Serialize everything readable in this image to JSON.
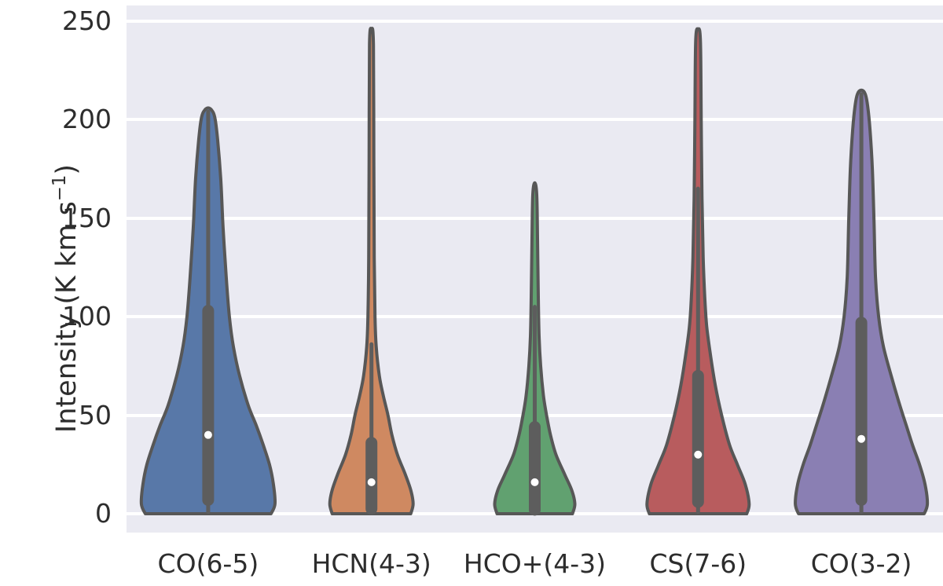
{
  "figure": {
    "page_bg": "#ffffff",
    "plot_bg": "#eaeaf2",
    "grid_color": "#ffffff",
    "text_color": "#2d2d2d",
    "violin_outline_color": "#575757",
    "inner_box_color": "#5d5d5d",
    "median_dot_color": "#ffffff"
  },
  "y_axis": {
    "label_prefix": "Intensity (K km s",
    "label_sup": "−1",
    "label_suffix": ")",
    "tick_labels": [
      "0",
      "50",
      "100",
      "150",
      "200",
      "250"
    ]
  },
  "chart_data": {
    "type": "violin",
    "title": "",
    "xlabel": "",
    "ylabel": "Intensity (K km s^-1)",
    "ylim": [
      -9.5,
      258
    ],
    "yticks": [
      0,
      50,
      100,
      150,
      200,
      250
    ],
    "grid": true,
    "categories": [
      "CO(6-5)",
      "HCN(4-3)",
      "HCO+(4-3)",
      "CS(7-6)",
      "CO(3-2)"
    ],
    "series": [
      {
        "label": "CO(6-5)",
        "color": "#5878A8",
        "min": 0,
        "max": 205,
        "q1": 7,
        "median": 40,
        "q3": 103,
        "whisker_low": 1,
        "whisker_high": 204,
        "profile": [
          [
            0,
            80
          ],
          [
            5,
            85
          ],
          [
            15,
            83
          ],
          [
            25,
            78
          ],
          [
            35,
            70
          ],
          [
            45,
            61
          ],
          [
            55,
            51
          ],
          [
            70,
            40
          ],
          [
            85,
            32
          ],
          [
            100,
            27
          ],
          [
            120,
            23
          ],
          [
            145,
            19
          ],
          [
            170,
            16
          ],
          [
            190,
            12
          ],
          [
            200,
            9
          ],
          [
            204,
            6
          ],
          [
            206,
            0
          ]
        ]
      },
      {
        "label": "HCN(4-3)",
        "color": "#CF8961",
        "min": 0,
        "max": 246,
        "q1": 2.5,
        "median": 16,
        "q3": 36,
        "whisker_low": 1,
        "whisker_high": 86,
        "profile": [
          [
            0,
            50
          ],
          [
            5,
            53
          ],
          [
            12,
            50
          ],
          [
            20,
            43
          ],
          [
            30,
            33
          ],
          [
            40,
            26
          ],
          [
            50,
            21
          ],
          [
            60,
            15
          ],
          [
            70,
            10
          ],
          [
            85,
            6
          ],
          [
            100,
            4.5
          ],
          [
            130,
            3.5
          ],
          [
            180,
            3
          ],
          [
            238,
            2.5
          ],
          [
            246,
            0
          ]
        ]
      },
      {
        "label": "HCO+(4-3)",
        "color": "#61A170",
        "min": 0,
        "max": 168,
        "q1": 2,
        "median": 16,
        "q3": 44,
        "whisker_low": 1,
        "whisker_high": 105,
        "profile": [
          [
            0,
            48
          ],
          [
            5,
            51
          ],
          [
            12,
            47
          ],
          [
            20,
            38
          ],
          [
            30,
            27
          ],
          [
            40,
            20
          ],
          [
            50,
            15
          ],
          [
            60,
            11
          ],
          [
            75,
            7.5
          ],
          [
            90,
            5.5
          ],
          [
            110,
            4.5
          ],
          [
            140,
            3.5
          ],
          [
            162,
            2.5
          ],
          [
            168,
            0
          ]
        ]
      },
      {
        "label": "CS(7-6)",
        "color": "#B85C5E",
        "min": 0,
        "max": 246,
        "q1": 6,
        "median": 30,
        "q3": 70,
        "whisker_low": 1,
        "whisker_high": 165,
        "profile": [
          [
            0,
            62
          ],
          [
            5,
            65
          ],
          [
            15,
            60
          ],
          [
            25,
            50
          ],
          [
            35,
            40
          ],
          [
            50,
            30
          ],
          [
            65,
            22
          ],
          [
            80,
            16
          ],
          [
            95,
            11
          ],
          [
            110,
            8.5
          ],
          [
            130,
            6.5
          ],
          [
            160,
            5
          ],
          [
            200,
            4
          ],
          [
            240,
            3
          ],
          [
            246,
            0
          ]
        ]
      },
      {
        "label": "CO(3-2)",
        "color": "#8A7FB3",
        "min": 0,
        "max": 215,
        "q1": 7,
        "median": 38,
        "q3": 97,
        "whisker_low": 1,
        "whisker_high": 213,
        "profile": [
          [
            0,
            80
          ],
          [
            5,
            84
          ],
          [
            15,
            81
          ],
          [
            25,
            74
          ],
          [
            35,
            65
          ],
          [
            45,
            57
          ],
          [
            55,
            49
          ],
          [
            70,
            38
          ],
          [
            85,
            28
          ],
          [
            100,
            22
          ],
          [
            120,
            18
          ],
          [
            150,
            16
          ],
          [
            175,
            14
          ],
          [
            195,
            11
          ],
          [
            207,
            8
          ],
          [
            213,
            5
          ],
          [
            215,
            0
          ]
        ]
      }
    ]
  }
}
